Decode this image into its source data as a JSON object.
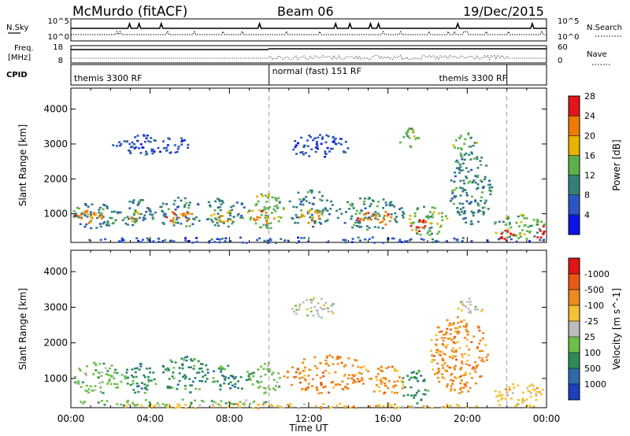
{
  "header": {
    "station": "McMurdo (fitACF)",
    "beam": "Beam 06",
    "date": "19/Dec/2015"
  },
  "top_panels": {
    "nsky_label": "N.Sky",
    "nsky_ticks": [
      "10^5",
      "10^0"
    ],
    "nsearch_label": "N.Search",
    "nsearch_ticks": [
      "10^5",
      "10^0"
    ],
    "freq_label_1": "Freq.",
    "freq_label_2": "[MHz]",
    "freq_ticks": [
      "18",
      "8"
    ],
    "nave_label": "Nave",
    "nave_ticks": [
      "60",
      "0"
    ],
    "cpid_label": "CPID",
    "cpid_segments": [
      {
        "label": "themis 3300 RF",
        "start": 0,
        "end": 10
      },
      {
        "label": "normal (fast) 151 RF",
        "start": 10,
        "end": 22
      },
      {
        "label": "themis 3300 RF",
        "start": 22,
        "end": 24
      }
    ]
  },
  "time_axis": {
    "label": "Time UT",
    "ticks": [
      "00:00",
      "04:00",
      "08:00",
      "12:00",
      "16:00",
      "20:00",
      "00:00"
    ]
  },
  "chart_data": [
    {
      "type": "heatmap",
      "panel": "power",
      "xlabel": "Time UT",
      "ylabel": "Slant Range [km]",
      "xlim": [
        0,
        24
      ],
      "ylim": [
        180,
        4600
      ],
      "yticks": [
        1000,
        2000,
        3000,
        4000
      ],
      "colorbar": {
        "label": "Power [dB]",
        "ticks": [
          "4",
          "8",
          "12",
          "16",
          "20",
          "24",
          "28"
        ],
        "colors": [
          "#0a14e6",
          "#2b56c2",
          "#33807a",
          "#5cb24a",
          "#e8b400",
          "#f07a00",
          "#e2151a"
        ]
      },
      "blobs": [
        {
          "t0": 0.0,
          "t1": 2.4,
          "r0": 600,
          "r1": 1350,
          "c": 2
        },
        {
          "t0": 0.2,
          "t1": 1.6,
          "r0": 750,
          "r1": 1150,
          "c": 5
        },
        {
          "t0": 2.4,
          "t1": 4.2,
          "r0": 650,
          "r1": 1450,
          "c": 2
        },
        {
          "t0": 2.8,
          "t1": 3.6,
          "r0": 800,
          "r1": 1100,
          "c": 4
        },
        {
          "t0": 4.2,
          "t1": 6.6,
          "r0": 600,
          "r1": 1500,
          "c": 2
        },
        {
          "t0": 4.6,
          "t1": 6.2,
          "r0": 750,
          "r1": 1100,
          "c": 5
        },
        {
          "t0": 6.6,
          "t1": 8.8,
          "r0": 650,
          "r1": 1500,
          "c": 2
        },
        {
          "t0": 7.0,
          "t1": 8.3,
          "r0": 800,
          "r1": 1150,
          "c": 4
        },
        {
          "t0": 8.8,
          "t1": 10.8,
          "r0": 600,
          "r1": 1650,
          "c": 3
        },
        {
          "t0": 9.1,
          "t1": 10.2,
          "r0": 700,
          "r1": 1100,
          "c": 5
        },
        {
          "t0": 10.8,
          "t1": 13.2,
          "r0": 650,
          "r1": 1700,
          "c": 2
        },
        {
          "t0": 11.4,
          "t1": 12.8,
          "r0": 750,
          "r1": 1150,
          "c": 4
        },
        {
          "t0": 13.2,
          "t1": 16.8,
          "r0": 550,
          "r1": 1500,
          "c": 2
        },
        {
          "t0": 14.4,
          "t1": 16.4,
          "r0": 700,
          "r1": 1100,
          "c": 5
        },
        {
          "t0": 16.8,
          "t1": 19.0,
          "r0": 400,
          "r1": 1250,
          "c": 3
        },
        {
          "t0": 17.1,
          "t1": 18.2,
          "r0": 500,
          "r1": 850,
          "c": 6
        },
        {
          "t0": 19.0,
          "t1": 21.2,
          "r0": 700,
          "r1": 2800,
          "c": 2
        },
        {
          "t0": 21.2,
          "t1": 24.0,
          "r0": 250,
          "r1": 1000,
          "c": 3
        },
        {
          "t0": 21.4,
          "t1": 22.4,
          "r0": 250,
          "r1": 550,
          "c": 6
        },
        {
          "t0": 23.4,
          "t1": 24.0,
          "r0": 250,
          "r1": 700,
          "c": 6
        },
        {
          "t0": 0.0,
          "t1": 24.0,
          "r0": 180,
          "r1": 360,
          "c": 1
        },
        {
          "t0": 2.0,
          "t1": 6.0,
          "r0": 2700,
          "r1": 3300,
          "c": 1
        },
        {
          "t0": 11.0,
          "t1": 14.0,
          "r0": 2600,
          "r1": 3300,
          "c": 1
        },
        {
          "t0": 16.5,
          "t1": 17.5,
          "r0": 2900,
          "r1": 3500,
          "c": 3
        },
        {
          "t0": 19.2,
          "t1": 20.5,
          "r0": 2700,
          "r1": 3400,
          "c": 3
        }
      ]
    },
    {
      "type": "heatmap",
      "panel": "velocity",
      "xlabel": "Time UT",
      "ylabel": "Slant Range [km]",
      "xlim": [
        0,
        24
      ],
      "ylim": [
        180,
        4600
      ],
      "yticks": [
        1000,
        2000,
        3000,
        4000
      ],
      "colorbar": {
        "label": "Velocity [m s^-1]",
        "ticks": [
          "1000",
          "500",
          "100",
          "25",
          "-25",
          "-100",
          "-500",
          "-1000"
        ],
        "colors": [
          "#1b3fbd",
          "#2d6aa8",
          "#2e8a5a",
          "#6cc04a",
          "#bdbdbd",
          "#f2c232",
          "#ee8a1e",
          "#e85a14",
          "#e01414"
        ]
      },
      "blobs": [
        {
          "t0": 0.0,
          "t1": 2.6,
          "r0": 600,
          "r1": 1500,
          "c": 3
        },
        {
          "t0": 2.6,
          "t1": 4.4,
          "r0": 600,
          "r1": 1500,
          "c": 2
        },
        {
          "t0": 4.4,
          "t1": 7.0,
          "r0": 600,
          "r1": 1650,
          "c": 2
        },
        {
          "t0": 7.0,
          "t1": 9.0,
          "r0": 650,
          "r1": 1500,
          "c": 2
        },
        {
          "t0": 9.0,
          "t1": 10.6,
          "r0": 600,
          "r1": 1500,
          "c": 3
        },
        {
          "t0": 10.6,
          "t1": 15.0,
          "r0": 600,
          "r1": 1700,
          "c": 6
        },
        {
          "t0": 15.0,
          "t1": 16.8,
          "r0": 500,
          "r1": 1400,
          "c": 6
        },
        {
          "t0": 16.6,
          "t1": 18.0,
          "r0": 300,
          "r1": 1300,
          "c": 2
        },
        {
          "t0": 18.0,
          "t1": 21.0,
          "r0": 600,
          "r1": 2800,
          "c": 6
        },
        {
          "t0": 21.0,
          "t1": 24.0,
          "r0": 300,
          "r1": 900,
          "c": 5
        },
        {
          "t0": 0.0,
          "t1": 24.0,
          "r0": 180,
          "r1": 320,
          "c": 5
        },
        {
          "t0": 0.0,
          "t1": 10.0,
          "r0": 250,
          "r1": 450,
          "c": 3
        },
        {
          "t0": 11.0,
          "t1": 13.5,
          "r0": 2700,
          "r1": 3300,
          "c": 4
        },
        {
          "t0": 19.2,
          "t1": 20.8,
          "r0": 2800,
          "r1": 3300,
          "c": 4
        }
      ]
    }
  ]
}
